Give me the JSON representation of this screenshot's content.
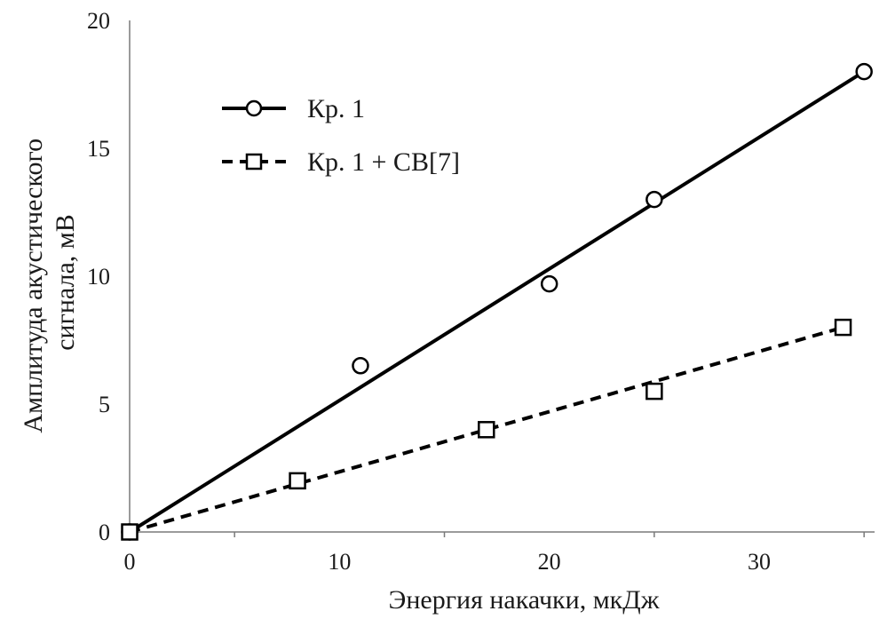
{
  "chart_data": {
    "type": "scatter",
    "xlabel": "Энергия накачки, мкДж",
    "ylabel_lines": [
      "Амплитуда акустического",
      "сигнала, мВ"
    ],
    "xlim": [
      0,
      35.5
    ],
    "ylim": [
      0,
      20
    ],
    "x_ticks": [
      0,
      10,
      20,
      30
    ],
    "y_ticks": [
      0,
      5,
      10,
      15,
      20
    ],
    "x_minor_ticks": [
      5,
      15,
      25,
      35
    ],
    "grid": false,
    "legend_position": "top-left",
    "series": [
      {
        "name": "Кр. 1",
        "marker": "circle",
        "line": "solid",
        "color": "#000000",
        "x": [
          0,
          11,
          20,
          25,
          35
        ],
        "y": [
          0,
          6.5,
          9.7,
          13,
          18
        ],
        "trend": [
          [
            0,
            0
          ],
          [
            35,
            18
          ]
        ]
      },
      {
        "name": "Кр. 1 + СВ[7]",
        "marker": "square",
        "line": "dashed",
        "color": "#000000",
        "x": [
          0,
          8,
          17,
          25,
          34
        ],
        "y": [
          0,
          2,
          4,
          5.5,
          8
        ],
        "trend": [
          [
            0,
            0
          ],
          [
            34,
            8
          ]
        ]
      }
    ]
  }
}
